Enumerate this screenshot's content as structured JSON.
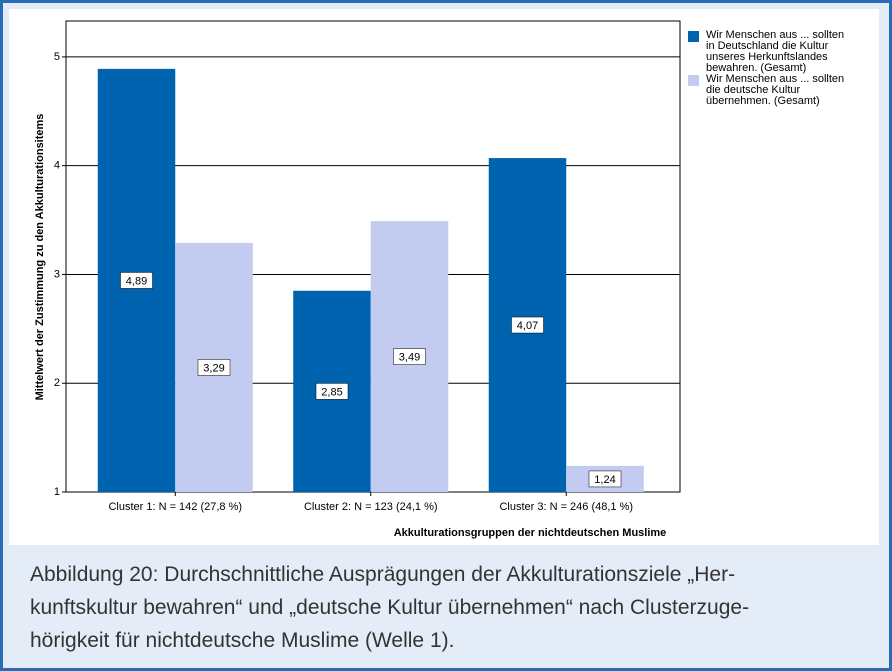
{
  "chart_data": {
    "type": "bar",
    "categories": [
      "Cluster 1: N = 142 (27,8 %)",
      "Cluster 2: N = 123 (24,1 %)",
      "Cluster 3: N = 246 (48,1 %)"
    ],
    "series": [
      {
        "name": "Wir Menschen aus ... sollten in Deutschland die Kultur unseres Herkunftslandes bewahren. (Gesamt)",
        "color": "#0063b0",
        "values": [
          4.89,
          2.85,
          4.07
        ],
        "value_labels": [
          "4,89",
          "2,85",
          "4,07"
        ]
      },
      {
        "name": "Wir Menschen aus ... sollten die deutsche Kultur übernehmen. (Gesamt)",
        "color": "#c3ccf0",
        "values": [
          3.29,
          3.49,
          1.24
        ],
        "value_labels": [
          "3,29",
          "3,49",
          "1,24"
        ]
      }
    ],
    "ylim": [
      1,
      5.33
    ],
    "yticks": [
      1,
      2,
      3,
      4,
      5
    ],
    "grid": true,
    "y_label": "Mittelwert der Zustimmung zu den Akkulturationsitems",
    "x_label": "Akkulturationsgruppen der nichtdeutschen Muslime",
    "legend": "top-right"
  },
  "caption": [
    "Abbildung 20: Durchschnittliche Ausprägungen der Akkulturationsziele „Her-",
    "kunftskultur bewahren“ und „deutsche Kultur übernehmen“ nach Clusterzuge-",
    "hörigkeit für nichtdeutsche Muslime (Welle 1)."
  ]
}
